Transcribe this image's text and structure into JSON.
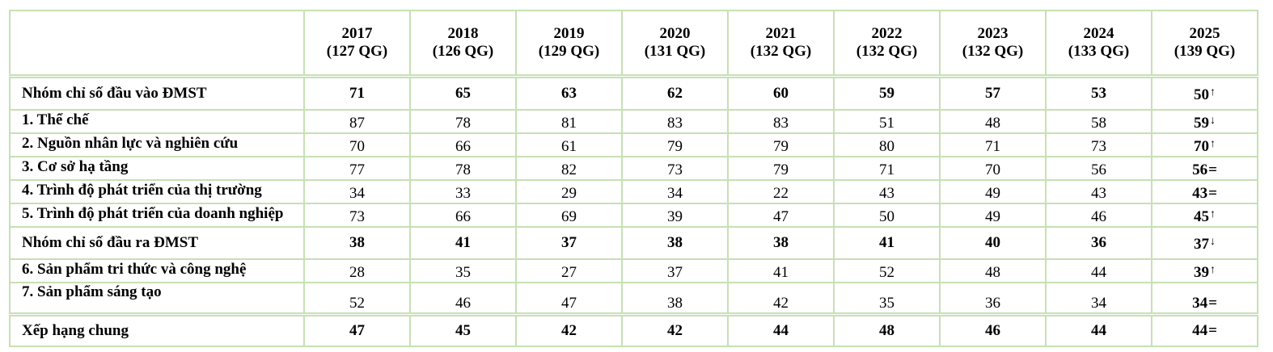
{
  "table": {
    "columns": [
      {
        "year": "2017",
        "count": "(127 QG)"
      },
      {
        "year": "2018",
        "count": "(126 QG)"
      },
      {
        "year": "2019",
        "count": "(129 QG)"
      },
      {
        "year": "2020",
        "count": "(131 QG)"
      },
      {
        "year": "2021",
        "count": "(132 QG)"
      },
      {
        "year": "2022",
        "count": "(132 QG)"
      },
      {
        "year": "2023",
        "count": "(132 QG)"
      },
      {
        "year": "2024",
        "count": "(133 QG)"
      },
      {
        "year": "2025",
        "count": "(139 QG)"
      }
    ],
    "rows": [
      {
        "label": "Nhóm chỉ số đầu vào ĐMST",
        "values": [
          "71",
          "65",
          "63",
          "62",
          "60",
          "59",
          "57",
          "53",
          "50"
        ],
        "trend": "↑"
      },
      {
        "label": "1. Thể chế",
        "values": [
          "87",
          "78",
          "81",
          "83",
          "83",
          "51",
          "48",
          "58",
          "59"
        ],
        "trend": "↓"
      },
      {
        "label": "2. Nguồn nhân lực và nghiên cứu",
        "values": [
          "70",
          "66",
          "61",
          "79",
          "79",
          "80",
          "71",
          "73",
          "70"
        ],
        "trend": "↑"
      },
      {
        "label": "3. Cơ sở hạ tầng",
        "values": [
          "77",
          "78",
          "82",
          "73",
          "79",
          "71",
          "70",
          "56",
          "56"
        ],
        "trend": "="
      },
      {
        "label": "4. Trình độ phát triển của thị trường",
        "values": [
          "34",
          "33",
          "29",
          "34",
          "22",
          "43",
          "49",
          "43",
          "43"
        ],
        "trend": "="
      },
      {
        "label": "5. Trình độ phát triển của doanh nghiệp",
        "values": [
          "73",
          "66",
          "69",
          "39",
          "47",
          "50",
          "49",
          "46",
          "45"
        ],
        "trend": "↑"
      },
      {
        "label": "Nhóm chỉ số đầu ra ĐMST",
        "values": [
          "38",
          "41",
          "37",
          "38",
          "38",
          "41",
          "40",
          "36",
          "37"
        ],
        "trend": "↓"
      },
      {
        "label": "6. Sản phẩm tri thức và công nghệ",
        "values": [
          "28",
          "35",
          "27",
          "37",
          "41",
          "52",
          "48",
          "44",
          "39"
        ],
        "trend": "↑"
      },
      {
        "label": "7. Sản phẩm sáng tạo",
        "values": [
          "52",
          "46",
          "47",
          "38",
          "42",
          "35",
          "36",
          "34",
          "34"
        ],
        "trend": "="
      },
      {
        "label": "Xếp hạng chung",
        "values": [
          "47",
          "45",
          "42",
          "42",
          "44",
          "48",
          "46",
          "44",
          "44"
        ],
        "trend": "="
      }
    ]
  }
}
